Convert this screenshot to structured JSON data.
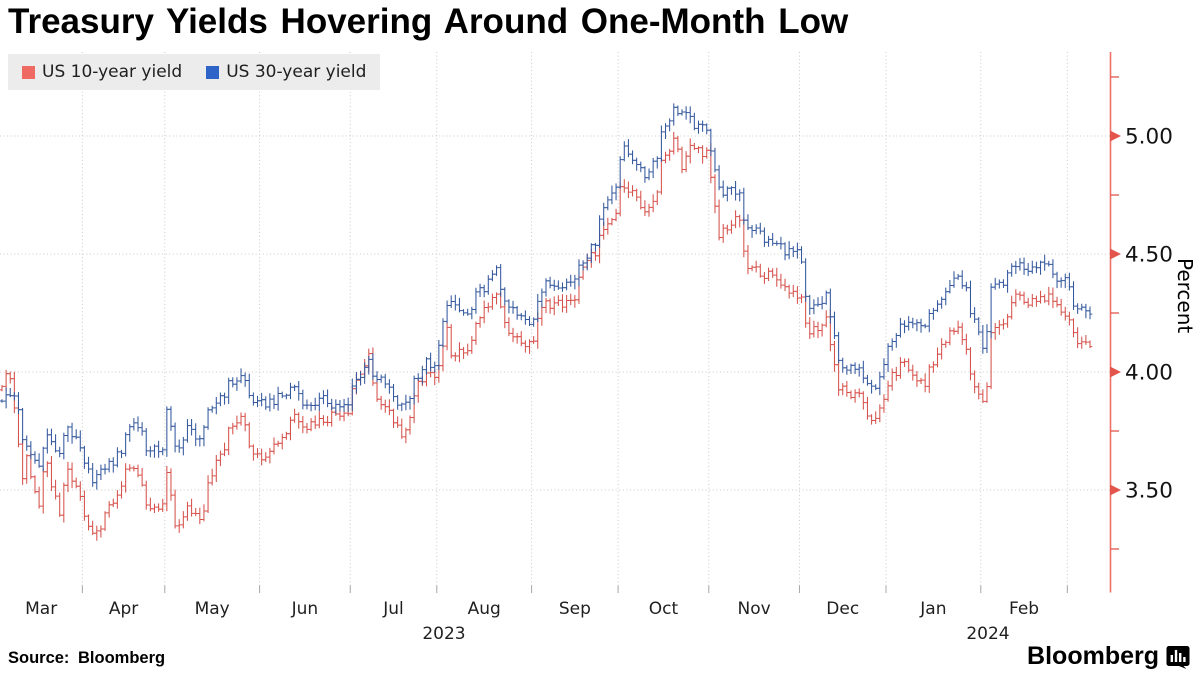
{
  "header": {
    "title": "Treasury Yields Hovering Around One-Month Low"
  },
  "legend": {
    "items": [
      {
        "label": "US 10-year yield",
        "color": "#ee6a62"
      },
      {
        "label": "US 30-year yield",
        "color": "#2e63c8"
      }
    ]
  },
  "y_axis": {
    "title": "Percent",
    "side": "right",
    "tick_labels": [
      "5.00",
      "4.50",
      "4.00",
      "3.50"
    ],
    "tick_values": [
      5.0,
      4.5,
      4.0,
      3.5
    ],
    "minor_tick_values": [
      5.25,
      4.75,
      4.25,
      3.75,
      3.25
    ]
  },
  "x_axis": {
    "month_labels": [
      "Mar",
      "Apr",
      "May",
      "Jun",
      "Jul",
      "Aug",
      "Sep",
      "Oct",
      "Nov",
      "Dec",
      "Jan",
      "Feb"
    ],
    "year_labels": [
      "2023",
      "2024"
    ],
    "start_date": "2023-03-06",
    "end_date": "2024-03-08"
  },
  "footer": {
    "source": "Source: Bloomberg",
    "brand": "Bloomberg",
    "brand_icon": "bloomberg-chart-bubble-icon"
  },
  "colors": {
    "series_10yr": "#d6514b",
    "series_30yr": "#34589e",
    "axis_line": "#ee7168",
    "axis_marker": "#e2544c",
    "gridline": "#c9c9c9",
    "month_tick": "#a8a8a8",
    "legend_bg": "#ececec",
    "label_text": "#1f1f1f",
    "title_text": "#000000"
  },
  "chart_data": {
    "type": "ohlc-bar",
    "unit": "percent",
    "frequency": "daily-weekdays",
    "x_start": "2023-03-06",
    "x_end": "2024-03-08",
    "ylim": [
      3.08,
      5.35
    ],
    "grid": {
      "horizontal_at": [
        5.0,
        4.5,
        4.0,
        3.5
      ],
      "vertical": "month-starts",
      "style": "dotted"
    },
    "series": [
      {
        "name": "US 10-year yield",
        "color": "#d6514b",
        "anchors": [
          [
            "2023-03-06",
            3.96
          ],
          [
            "2023-03-08",
            3.99
          ],
          [
            "2023-03-10",
            3.7
          ],
          [
            "2023-03-13",
            3.55
          ],
          [
            "2023-03-14",
            3.64
          ],
          [
            "2023-03-17",
            3.43
          ],
          [
            "2023-03-21",
            3.6
          ],
          [
            "2023-03-24",
            3.38
          ],
          [
            "2023-03-28",
            3.57
          ],
          [
            "2023-03-31",
            3.48
          ],
          [
            "2023-04-05",
            3.31
          ],
          [
            "2023-04-10",
            3.41
          ],
          [
            "2023-04-14",
            3.52
          ],
          [
            "2023-04-19",
            3.6
          ],
          [
            "2023-04-25",
            3.4
          ],
          [
            "2023-04-28",
            3.43
          ],
          [
            "2023-05-01",
            3.57
          ],
          [
            "2023-05-03",
            3.35
          ],
          [
            "2023-05-08",
            3.42
          ],
          [
            "2023-05-11",
            3.39
          ],
          [
            "2023-05-18",
            3.65
          ],
          [
            "2023-05-25",
            3.82
          ],
          [
            "2023-05-31",
            3.64
          ],
          [
            "2023-06-06",
            3.69
          ],
          [
            "2023-06-13",
            3.82
          ],
          [
            "2023-06-16",
            3.77
          ],
          [
            "2023-06-22",
            3.8
          ],
          [
            "2023-06-30",
            3.84
          ],
          [
            "2023-07-07",
            4.06
          ],
          [
            "2023-07-12",
            3.86
          ],
          [
            "2023-07-19",
            3.74
          ],
          [
            "2023-07-27",
            4.01
          ],
          [
            "2023-07-31",
            3.96
          ],
          [
            "2023-08-03",
            4.18
          ],
          [
            "2023-08-04",
            4.05
          ],
          [
            "2023-08-10",
            4.11
          ],
          [
            "2023-08-17",
            4.28
          ],
          [
            "2023-08-21",
            4.34
          ],
          [
            "2023-08-23",
            4.19
          ],
          [
            "2023-08-31",
            4.11
          ],
          [
            "2023-09-06",
            4.29
          ],
          [
            "2023-09-14",
            4.29
          ],
          [
            "2023-09-21",
            4.49
          ],
          [
            "2023-09-27",
            4.61
          ],
          [
            "2023-10-03",
            4.8
          ],
          [
            "2023-10-10",
            4.66
          ],
          [
            "2023-10-19",
            4.99
          ],
          [
            "2023-10-23",
            4.86
          ],
          [
            "2023-10-25",
            4.95
          ],
          [
            "2023-10-31",
            4.93
          ],
          [
            "2023-11-03",
            4.57
          ],
          [
            "2023-11-10",
            4.65
          ],
          [
            "2023-11-14",
            4.44
          ],
          [
            "2023-11-21",
            4.41
          ],
          [
            "2023-11-30",
            4.33
          ],
          [
            "2023-12-05",
            4.17
          ],
          [
            "2023-12-11",
            4.23
          ],
          [
            "2023-12-14",
            3.93
          ],
          [
            "2023-12-21",
            3.89
          ],
          [
            "2023-12-27",
            3.79
          ],
          [
            "2023-12-29",
            3.88
          ],
          [
            "2024-01-05",
            4.05
          ],
          [
            "2024-01-12",
            3.94
          ],
          [
            "2024-01-19",
            4.13
          ],
          [
            "2024-01-24",
            4.18
          ],
          [
            "2024-01-31",
            3.91
          ],
          [
            "2024-02-01",
            3.87
          ],
          [
            "2024-02-05",
            4.16
          ],
          [
            "2024-02-13",
            4.32
          ],
          [
            "2024-02-16",
            4.28
          ],
          [
            "2024-02-22",
            4.32
          ],
          [
            "2024-02-29",
            4.25
          ],
          [
            "2024-03-05",
            4.14
          ],
          [
            "2024-03-08",
            4.09
          ]
        ]
      },
      {
        "name": "US 30-year yield",
        "color": "#34589e",
        "anchors": [
          [
            "2023-03-06",
            3.89
          ],
          [
            "2023-03-09",
            3.9
          ],
          [
            "2023-03-13",
            3.7
          ],
          [
            "2023-03-17",
            3.6
          ],
          [
            "2023-03-21",
            3.73
          ],
          [
            "2023-03-24",
            3.64
          ],
          [
            "2023-03-28",
            3.77
          ],
          [
            "2023-03-31",
            3.67
          ],
          [
            "2023-04-05",
            3.55
          ],
          [
            "2023-04-12",
            3.62
          ],
          [
            "2023-04-19",
            3.79
          ],
          [
            "2023-04-25",
            3.66
          ],
          [
            "2023-04-28",
            3.68
          ],
          [
            "2023-05-01",
            3.83
          ],
          [
            "2023-05-03",
            3.68
          ],
          [
            "2023-05-08",
            3.76
          ],
          [
            "2023-05-11",
            3.72
          ],
          [
            "2023-05-18",
            3.9
          ],
          [
            "2023-05-25",
            3.98
          ],
          [
            "2023-05-31",
            3.86
          ],
          [
            "2023-06-06",
            3.88
          ],
          [
            "2023-06-13",
            3.94
          ],
          [
            "2023-06-16",
            3.85
          ],
          [
            "2023-06-22",
            3.88
          ],
          [
            "2023-06-30",
            3.85
          ],
          [
            "2023-07-07",
            4.05
          ],
          [
            "2023-07-12",
            3.96
          ],
          [
            "2023-07-19",
            3.85
          ],
          [
            "2023-07-27",
            4.04
          ],
          [
            "2023-07-31",
            4.01
          ],
          [
            "2023-08-03",
            4.3
          ],
          [
            "2023-08-10",
            4.24
          ],
          [
            "2023-08-17",
            4.38
          ],
          [
            "2023-08-21",
            4.45
          ],
          [
            "2023-08-23",
            4.28
          ],
          [
            "2023-08-31",
            4.21
          ],
          [
            "2023-09-06",
            4.37
          ],
          [
            "2023-09-14",
            4.38
          ],
          [
            "2023-09-21",
            4.52
          ],
          [
            "2023-09-27",
            4.73
          ],
          [
            "2023-10-03",
            4.94
          ],
          [
            "2023-10-10",
            4.83
          ],
          [
            "2023-10-19",
            5.11
          ],
          [
            "2023-10-23",
            5.1
          ],
          [
            "2023-10-27",
            5.03
          ],
          [
            "2023-10-31",
            5.04
          ],
          [
            "2023-11-03",
            4.77
          ],
          [
            "2023-11-10",
            4.76
          ],
          [
            "2023-11-14",
            4.62
          ],
          [
            "2023-11-21",
            4.55
          ],
          [
            "2023-11-30",
            4.5
          ],
          [
            "2023-12-05",
            4.26
          ],
          [
            "2023-12-11",
            4.33
          ],
          [
            "2023-12-14",
            4.04
          ],
          [
            "2023-12-21",
            4.0
          ],
          [
            "2023-12-27",
            3.95
          ],
          [
            "2023-12-29",
            4.03
          ],
          [
            "2024-01-05",
            4.21
          ],
          [
            "2024-01-12",
            4.18
          ],
          [
            "2024-01-19",
            4.33
          ],
          [
            "2024-01-24",
            4.41
          ],
          [
            "2024-01-31",
            4.18
          ],
          [
            "2024-02-01",
            4.11
          ],
          [
            "2024-02-05",
            4.34
          ],
          [
            "2024-02-13",
            4.46
          ],
          [
            "2024-02-16",
            4.44
          ],
          [
            "2024-02-22",
            4.47
          ],
          [
            "2024-02-29",
            4.38
          ],
          [
            "2024-03-05",
            4.27
          ],
          [
            "2024-03-08",
            4.26
          ]
        ]
      }
    ]
  }
}
